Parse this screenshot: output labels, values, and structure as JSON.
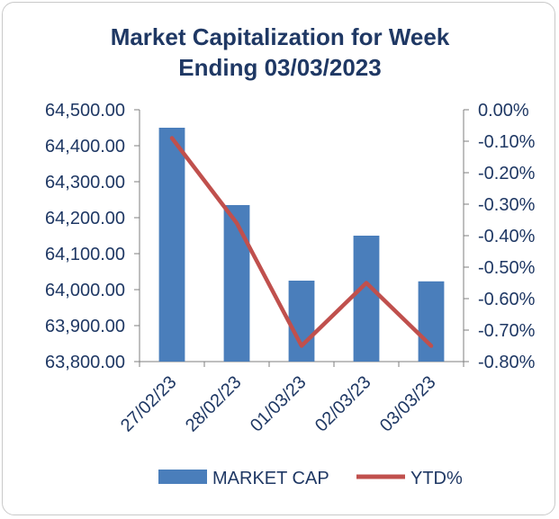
{
  "chart_data": {
    "type": "bar",
    "title_lines": [
      "Market Capitalization for Week",
      "Ending 03/03/2023"
    ],
    "categories": [
      "27/02/23",
      "28/02/23",
      "01/03/23",
      "02/03/23",
      "03/03/23"
    ],
    "series": [
      {
        "name": "MARKET CAP",
        "type": "bar",
        "axis": "left",
        "color": "#4a7ebb",
        "values": [
          64450,
          64235,
          64025,
          64150,
          64023
        ]
      },
      {
        "name": "YTD%",
        "type": "line",
        "axis": "right",
        "color": "#c0504d",
        "values": [
          -0.0009,
          -0.0036,
          -0.0075,
          -0.0055,
          -0.0075
        ]
      }
    ],
    "y_left": {
      "min": 63800,
      "max": 64500,
      "step": 100,
      "tick_labels": [
        "63,800.00",
        "63,900.00",
        "64,000.00",
        "64,100.00",
        "64,200.00",
        "64,300.00",
        "64,400.00",
        "64,500.00"
      ]
    },
    "y_right": {
      "min": -0.008,
      "max": 0,
      "step": 0.001,
      "tick_labels": [
        "-0.80%",
        "-0.70%",
        "-0.60%",
        "-0.50%",
        "-0.40%",
        "-0.30%",
        "-0.20%",
        "-0.10%",
        "0.00%"
      ]
    },
    "legend_position": "bottom",
    "grid": false
  }
}
